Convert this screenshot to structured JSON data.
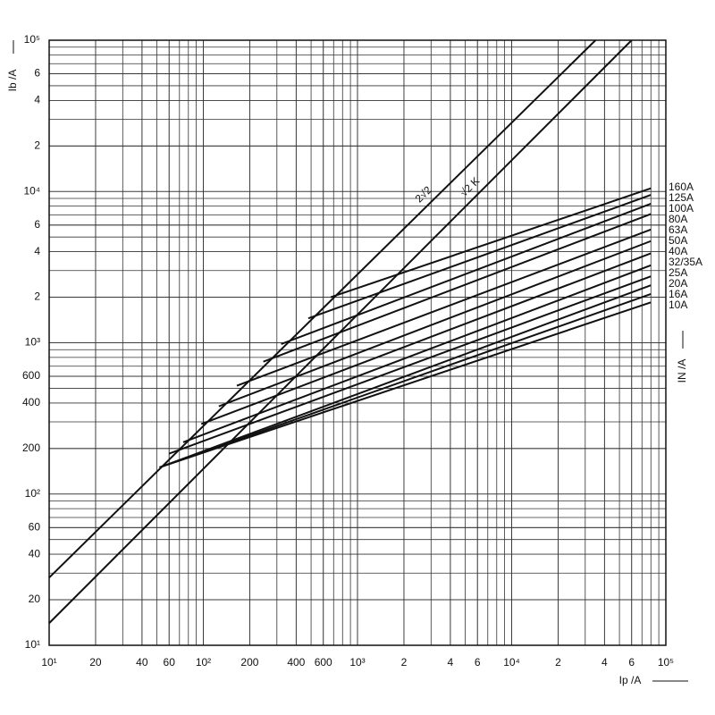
{
  "chart_data": {
    "type": "line",
    "log_x": true,
    "log_y": true,
    "grid": true,
    "x_label": "Ip /A",
    "y_label": "Ib /A",
    "legend_title": "IN /A",
    "xlim": [
      10,
      100000
    ],
    "ylim": [
      10,
      100000
    ],
    "xticks": [
      {
        "value": 10,
        "label": "10¹"
      },
      20,
      40,
      60,
      {
        "value": 100,
        "label": "10²"
      },
      200,
      400,
      600,
      {
        "value": 1000,
        "label": "10³"
      },
      {
        "value": 2000,
        "label": "2"
      },
      {
        "value": 4000,
        "label": "4"
      },
      {
        "value": 6000,
        "label": "6"
      },
      {
        "value": 10000,
        "label": "10⁴"
      },
      {
        "value": 20000,
        "label": "2"
      },
      {
        "value": 40000,
        "label": "4"
      },
      {
        "value": 60000,
        "label": "6"
      },
      {
        "value": 100000,
        "label": "10⁵"
      }
    ],
    "yticks": [
      {
        "value": 10,
        "label": "10¹"
      },
      20,
      40,
      60,
      {
        "value": 100,
        "label": "10²"
      },
      200,
      400,
      600,
      {
        "value": 1000,
        "label": "10³"
      },
      {
        "value": 2000,
        "label": "2"
      },
      {
        "value": 4000,
        "label": "4"
      },
      {
        "value": 6000,
        "label": "6"
      },
      {
        "value": 10000,
        "label": "10⁴"
      },
      {
        "value": 20000,
        "label": "2"
      },
      {
        "value": 40000,
        "label": "4"
      },
      {
        "value": 60000,
        "label": "6"
      },
      {
        "value": 100000,
        "label": "10⁵"
      }
    ],
    "reference_lines": [
      {
        "name": "2√2",
        "color": "#111",
        "x": [
          10,
          35000
        ],
        "values": [
          28,
          100000
        ]
      },
      {
        "name": "√2 K",
        "color": "#111",
        "x": [
          10,
          60000
        ],
        "values": [
          14,
          100000
        ]
      }
    ],
    "series": [
      {
        "name": "160A",
        "color": "#111",
        "x": [
          670,
          80000
        ],
        "values": [
          2000,
          10500
        ]
      },
      {
        "name": "125A",
        "color": "#111",
        "x": [
          480,
          80000
        ],
        "values": [
          1450,
          9500
        ]
      },
      {
        "name": "100A",
        "color": "#111",
        "x": [
          320,
          80000
        ],
        "values": [
          980,
          8300
        ]
      },
      {
        "name": "80A",
        "color": "#111",
        "x": [
          245,
          80000
        ],
        "values": [
          750,
          7100
        ]
      },
      {
        "name": "63A",
        "color": "#111",
        "x": [
          165,
          80000
        ],
        "values": [
          520,
          5600
        ]
      },
      {
        "name": "50A",
        "color": "#111",
        "x": [
          126,
          80000
        ],
        "values": [
          380,
          4700
        ]
      },
      {
        "name": "40A",
        "color": "#111",
        "x": [
          97,
          80000
        ],
        "values": [
          290,
          3900
        ]
      },
      {
        "name": "32/35A",
        "color": "#111",
        "x": [
          74,
          80000
        ],
        "values": [
          220,
          3250
        ]
      },
      {
        "name": "25A",
        "color": "#111",
        "x": [
          60,
          80000
        ],
        "values": [
          185,
          2750
        ]
      },
      {
        "name": "20A",
        "color": "#111",
        "x": [
          52,
          80000
        ],
        "values": [
          150,
          2400
        ]
      },
      {
        "name": "16A",
        "color": "#111",
        "x": [
          52,
          80000
        ],
        "values": [
          150,
          2100
        ]
      },
      {
        "name": "10A",
        "color": "#111",
        "x": [
          52,
          80000
        ],
        "values": [
          150,
          1850
        ]
      }
    ]
  }
}
